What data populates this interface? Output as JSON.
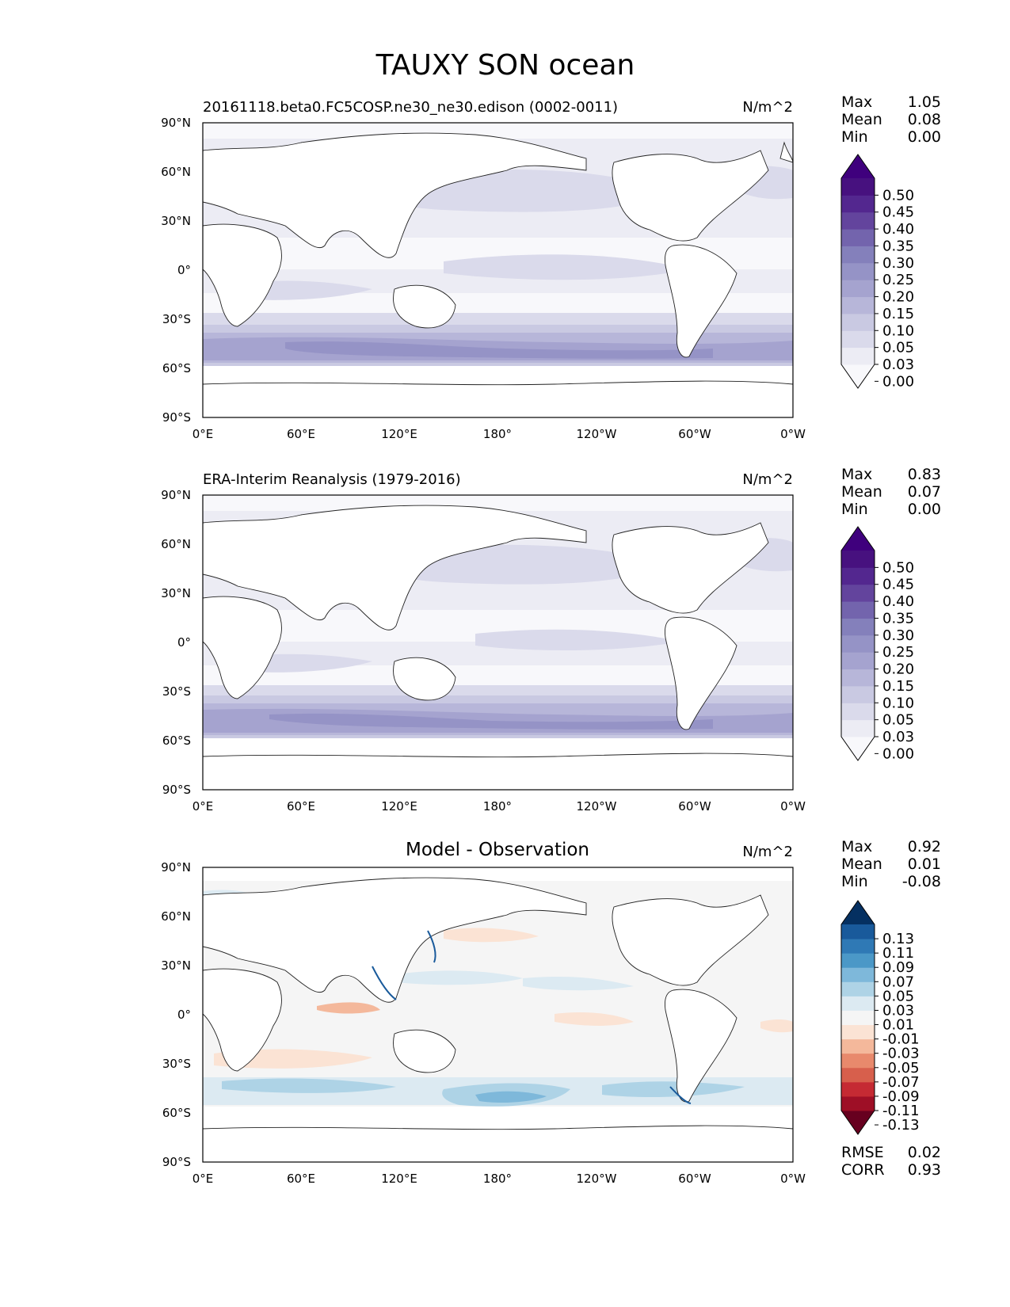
{
  "figure_title": "TAUXY SON ocean",
  "axes": {
    "lat_ticks": [
      "90°N",
      "60°N",
      "30°N",
      "0°",
      "30°S",
      "60°S",
      "90°S"
    ],
    "lon_ticks": [
      "0°E",
      "60°E",
      "120°E",
      "180°",
      "120°W",
      "60°W",
      "0°W"
    ]
  },
  "stats_labels": {
    "max": "Max",
    "mean": "Mean",
    "min": "Min",
    "rmse": "RMSE",
    "corr": "CORR"
  },
  "chart_data": [
    {
      "type": "heatmap",
      "title": "20161118.beta0.FC5COSP.ne30_ne30.edison (0002-0011)",
      "units": "N/m^2",
      "stats": {
        "max": "1.05",
        "mean": "0.08",
        "min": "0.00"
      },
      "colorbar_levels": [
        "0.50",
        "0.45",
        "0.40",
        "0.35",
        "0.30",
        "0.25",
        "0.20",
        "0.15",
        "0.10",
        "0.05",
        "0.03",
        "0.00"
      ],
      "colormap": "purples",
      "colors": [
        "#f8f8fb",
        "#ececf4",
        "#dadaeb",
        "#c9c9e2",
        "#b7b6d9",
        "#a5a3cf",
        "#9593c6",
        "#8480bb",
        "#7364ad",
        "#63449d",
        "#53278f",
        "#47117f",
        "#3f007d"
      ]
    },
    {
      "type": "heatmap",
      "title": "ERA-Interim Reanalysis (1979-2016)",
      "units": "N/m^2",
      "stats": {
        "max": "0.83",
        "mean": "0.07",
        "min": "0.00"
      },
      "colorbar_levels": [
        "0.50",
        "0.45",
        "0.40",
        "0.35",
        "0.30",
        "0.25",
        "0.20",
        "0.15",
        "0.10",
        "0.05",
        "0.03",
        "0.00"
      ],
      "colormap": "purples",
      "colors": [
        "#f8f8fb",
        "#ececf4",
        "#dadaeb",
        "#c9c9e2",
        "#b7b6d9",
        "#a5a3cf",
        "#9593c6",
        "#8480bb",
        "#7364ad",
        "#63449d",
        "#53278f",
        "#47117f",
        "#3f007d"
      ]
    },
    {
      "type": "heatmap",
      "title": "Model - Observation",
      "units": "N/m^2",
      "stats": {
        "max": "0.92",
        "mean": "0.01",
        "min": "-0.08"
      },
      "rmse": "0.02",
      "corr": "0.93",
      "colorbar_levels": [
        "0.13",
        "0.11",
        "0.09",
        "0.07",
        "0.05",
        "0.03",
        "0.01",
        "-0.01",
        "-0.03",
        "-0.05",
        "-0.07",
        "-0.09",
        "-0.11",
        "-0.13"
      ],
      "colormap": "red-blue diverging",
      "colors": [
        "#67001f",
        "#9e0f26",
        "#c52a33",
        "#d75f4c",
        "#e8896c",
        "#f4b89b",
        "#fbe3d4",
        "#f5f5f5",
        "#dceaf2",
        "#aed3e6",
        "#7eb8da",
        "#4b98c7",
        "#2f79b5",
        "#195a9b",
        "#053061"
      ]
    }
  ]
}
